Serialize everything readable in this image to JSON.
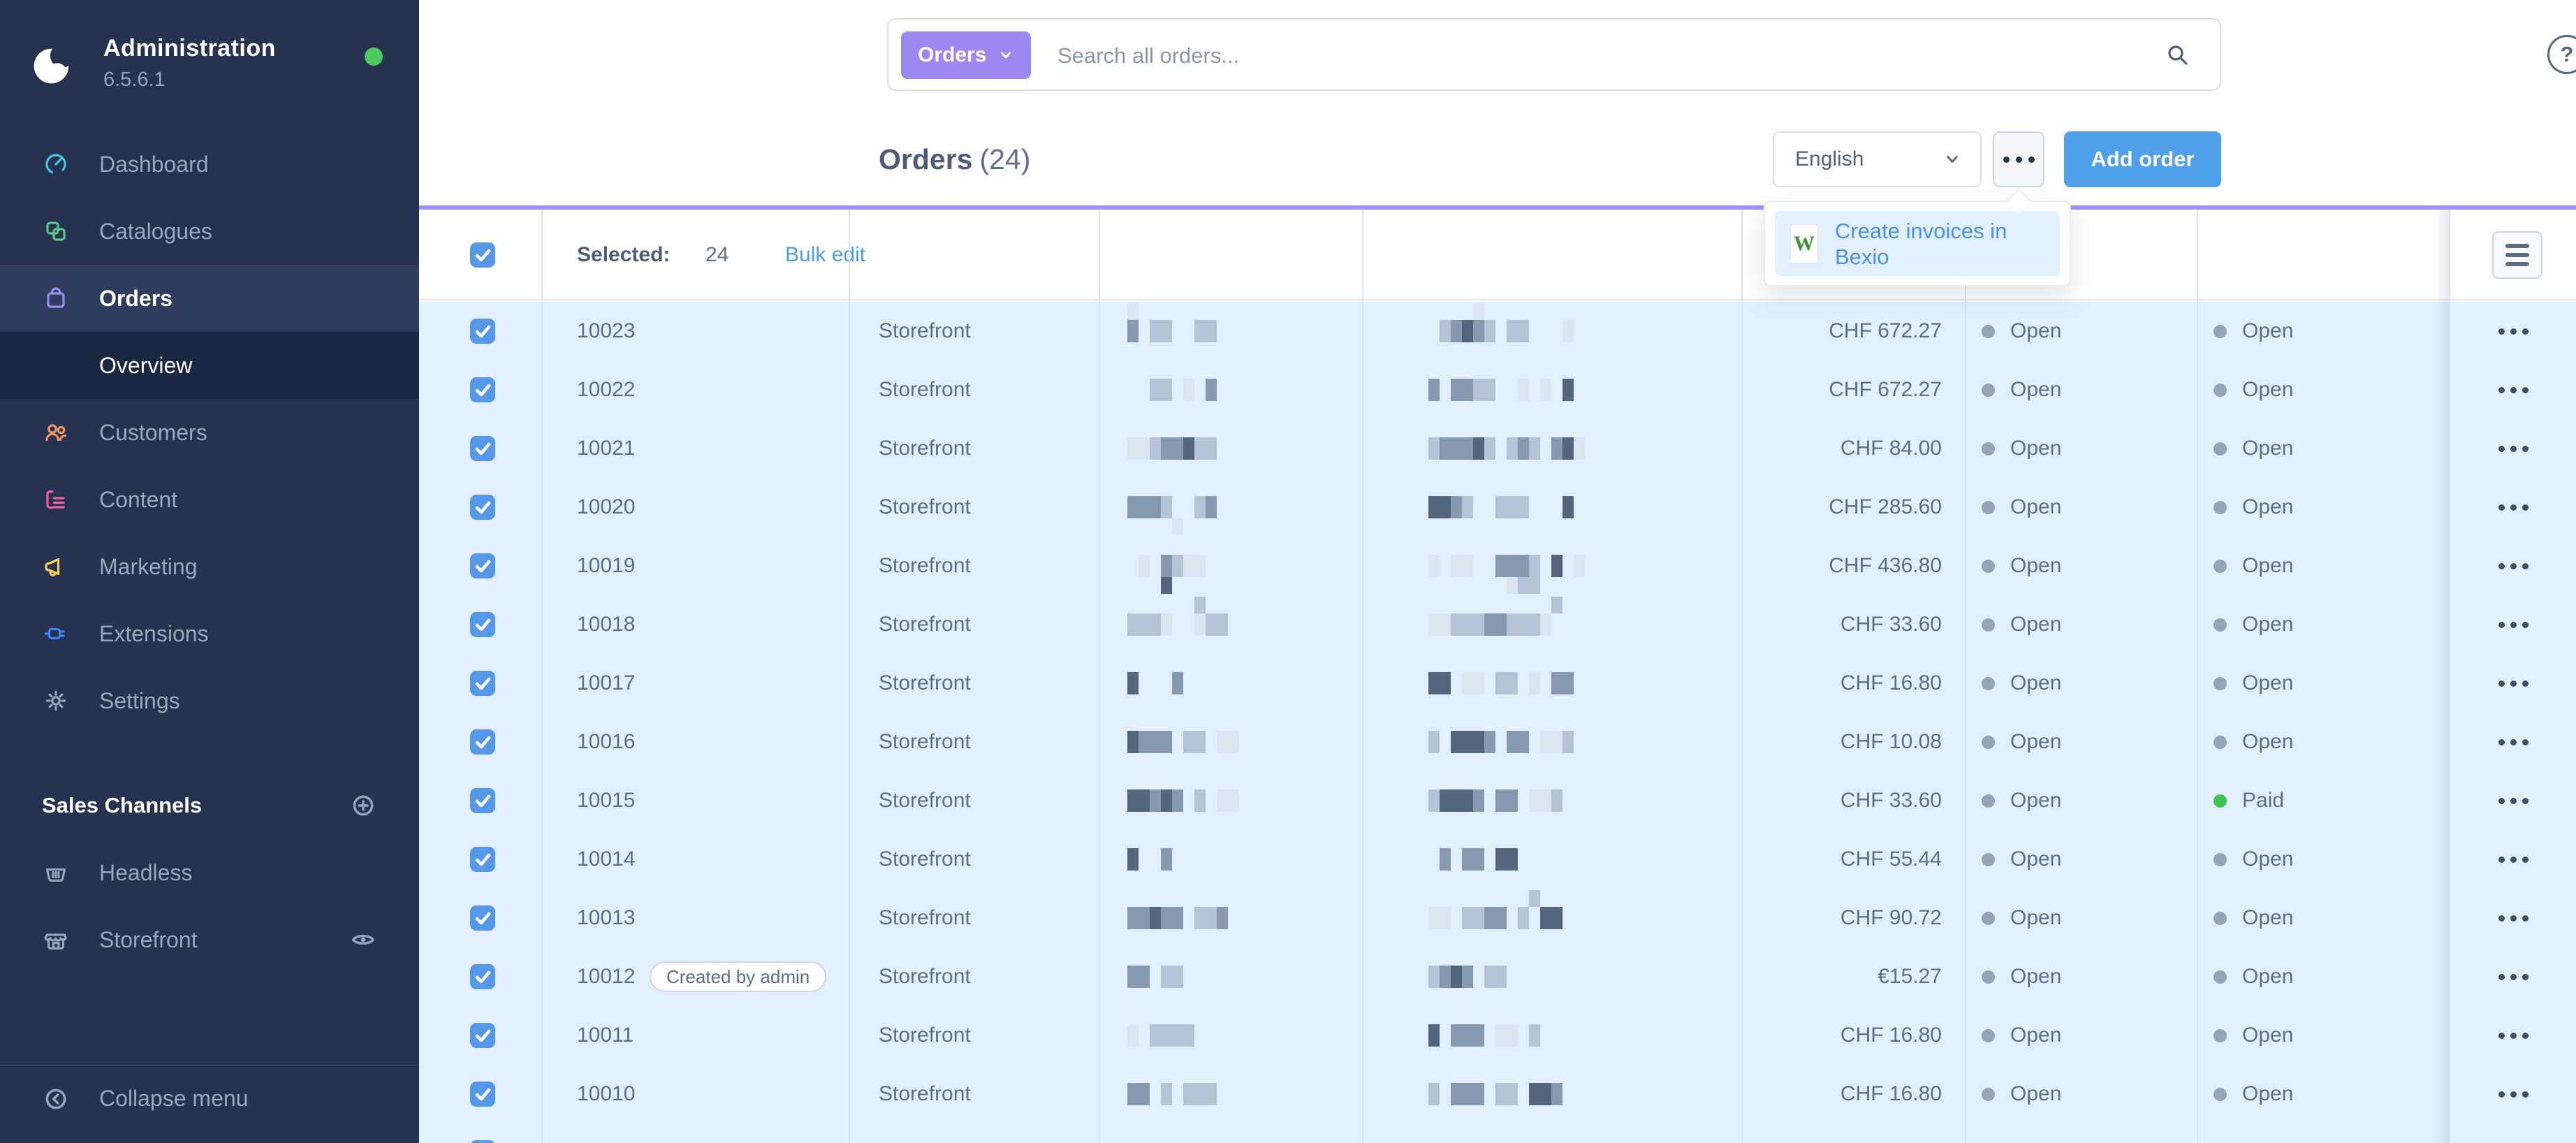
{
  "app": {
    "name": "Administration",
    "version": "6.5.6.1",
    "online_dot_color": "#4fc862"
  },
  "sidebar": {
    "items": [
      {
        "label": "Dashboard",
        "icon": "dashboard",
        "color": "#4cc4e6",
        "active": false
      },
      {
        "label": "Catalogues",
        "icon": "catalogues",
        "color": "#5cc78c",
        "active": false
      },
      {
        "label": "Orders",
        "icon": "orders",
        "color": "#9a8cf5",
        "active": true,
        "children": [
          {
            "label": "Overview",
            "active": true
          }
        ]
      },
      {
        "label": "Customers",
        "icon": "customers",
        "color": "#f09264",
        "active": false
      },
      {
        "label": "Content",
        "icon": "content",
        "color": "#f2619d",
        "active": false
      },
      {
        "label": "Marketing",
        "icon": "marketing",
        "color": "#f7d354",
        "active": false
      },
      {
        "label": "Extensions",
        "icon": "extensions",
        "color": "#3c83f6",
        "active": false
      },
      {
        "label": "Settings",
        "icon": "settings",
        "color": "#9aa6bc",
        "active": false
      }
    ],
    "sales_channels": {
      "label": "Sales Channels",
      "items": [
        {
          "label": "Headless",
          "icon": "headless",
          "eye": false
        },
        {
          "label": "Storefront",
          "icon": "storefront",
          "eye": true
        }
      ]
    },
    "collapse_label": "Collapse menu"
  },
  "topbar": {
    "scope": "Orders",
    "placeholder": "Search all orders...",
    "help": "?"
  },
  "page": {
    "title": "Orders",
    "count": "(24)",
    "language": "English",
    "add_order": "Add order"
  },
  "context_menu": {
    "items": [
      {
        "label": "Create invoices in Bexio",
        "icon_letter": "W",
        "icon_color": "#3f8f3f"
      }
    ]
  },
  "grid": {
    "selected_label": "Selected:",
    "selected_count": "24",
    "bulk_edit": "Bulk edit",
    "status_colors": {
      "open": "#94a3b8",
      "paid": "#3fc34d"
    },
    "rows": [
      {
        "number": "10023",
        "channel": "Storefront",
        "amount": "CHF 672.27",
        "s1": "Open",
        "s2": "Open",
        "s2_state": "open",
        "nb": "302200220",
        "nbt": "100000000",
        "nbb": "",
        "ab": "0234320220001",
        "abt": "0000100000000",
        "abb": ""
      },
      {
        "number": "10022",
        "channel": "Storefront",
        "amount": "CHF 672.27",
        "s1": "Open",
        "s2": "Open",
        "s2_state": "open",
        "nb": "002201030",
        "nbt": "",
        "nbb": "",
        "ab": "3033220010104",
        "abt": "",
        "abb": ""
      },
      {
        "number": "10021",
        "channel": "Storefront",
        "amount": "CHF 84.00",
        "s1": "Open",
        "s2": "Open",
        "s2_state": "open",
        "nb": "112334220",
        "nbt": "",
        "nbb": "",
        "ab": "23334202320341",
        "abt": "",
        "abb": ""
      },
      {
        "number": "10020",
        "channel": "Storefront",
        "amount": "CHF 285.60",
        "s1": "Open",
        "s2": "Open",
        "s2_state": "open",
        "nb": "333200230",
        "nbt": "",
        "nbb": "000010000",
        "ab": "4432002220004",
        "abt": "",
        "abb": ""
      },
      {
        "number": "10019",
        "channel": "Storefront",
        "amount": "CHF 436.80",
        "s1": "Open",
        "s2": "Open",
        "s2_state": "open",
        "nb": "010321100",
        "nbt": "",
        "nbb": "000400000",
        "ab": "10110033320401",
        "abt": "",
        "abb": "00000001220000"
      },
      {
        "number": "10018",
        "channel": "Storefront",
        "amount": "CHF 33.60",
        "s1": "Open",
        "s2": "Open",
        "s2_state": "open",
        "nb": "222100122",
        "nbt": "000000200",
        "nbb": "",
        "ab": "1122233222100",
        "abt": "0000000000020",
        "abb": ""
      },
      {
        "number": "10017",
        "channel": "Storefront",
        "amount": "CHF 16.80",
        "s1": "Open",
        "s2": "Open",
        "s2_state": "open",
        "nb": "400030000",
        "nbt": "",
        "nbb": "",
        "ab": "44011022010330",
        "abt": "",
        "abb": ""
      },
      {
        "number": "10016",
        "channel": "Storefront",
        "amount": "CHF 10.08",
        "s1": "Open",
        "s2": "Open",
        "s2_state": "open",
        "nb": "4333022011",
        "nbt": "",
        "nbb": "",
        "ab": "2044430330112",
        "abt": "",
        "abb": ""
      },
      {
        "number": "10015",
        "channel": "Storefront",
        "amount": "CHF 33.60",
        "s1": "Open",
        "s2": "Paid",
        "s2_state": "paid",
        "nb": "4434302011",
        "nbt": "",
        "nbb": "",
        "ab": "244430330112",
        "abt": "",
        "abb": ""
      },
      {
        "number": "10014",
        "channel": "Storefront",
        "amount": "CHF 55.44",
        "s1": "Open",
        "s2": "Open",
        "s2_state": "open",
        "nb": "400300000",
        "nbt": "",
        "nbb": "",
        "ab": "03033044",
        "abt": "",
        "abb": ""
      },
      {
        "number": "10013",
        "channel": "Storefront",
        "amount": "CHF 90.72",
        "s1": "Open",
        "s2": "Open",
        "s2_state": "open",
        "nb": "334330223",
        "nbt": "",
        "nbb": "",
        "ab": "110223302044",
        "abt": "000000000200",
        "abb": ""
      },
      {
        "number": "10012",
        "badge": "Created by admin",
        "channel": "Storefront",
        "amount": "€15.27",
        "s1": "Open",
        "s2": "Open",
        "s2_state": "open",
        "nb": "330220000",
        "nbt": "",
        "nbb": "",
        "ab": "23430220",
        "abt": "",
        "abb": ""
      },
      {
        "number": "10011",
        "channel": "Storefront",
        "amount": "CHF 16.80",
        "s1": "Open",
        "s2": "Open",
        "s2_state": "open",
        "nb": "102222000",
        "nbt": "",
        "nbb": "",
        "ab": "4033301102",
        "abt": "",
        "abb": ""
      },
      {
        "number": "10010",
        "channel": "Storefront",
        "amount": "CHF 16.80",
        "s1": "Open",
        "s2": "Open",
        "s2_state": "open",
        "nb": "330202220",
        "nbt": "",
        "nbb": "",
        "ab": "203330220443",
        "abt": "",
        "abb": ""
      },
      {
        "partial": true
      }
    ]
  }
}
